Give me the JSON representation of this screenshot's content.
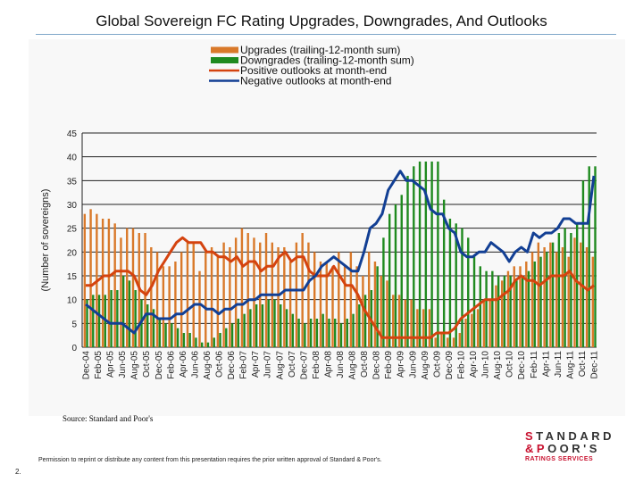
{
  "slide": {
    "source": "Source: Standard and Poor's",
    "permission": "Permission to reprint or distribute any content from this presentation requires the prior written approval of Standard & Poor's.",
    "page_number": "2.",
    "logo": {
      "line1_first": "S",
      "line1_rest": "TANDARD",
      "line2_first": "&P",
      "line2_rest": "OOR'S",
      "line3": "RATINGS SERVICES"
    }
  },
  "chart_data": {
    "type": "bar",
    "title": "Global Sovereign FC Rating Upgrades, Downgrades, And Outlooks",
    "xlabel": "",
    "ylabel": "(Number of sovereigns)",
    "ylim": [
      0,
      45
    ],
    "yticks": [
      0,
      5,
      10,
      15,
      20,
      25,
      30,
      35,
      40,
      45
    ],
    "grid": true,
    "legend_position": "top",
    "tick_every": 2,
    "x": [
      "Dec-04",
      "Jan-05",
      "Feb-05",
      "Mar-05",
      "Apr-05",
      "May-05",
      "Jun-05",
      "Jul-05",
      "Aug-05",
      "Sep-05",
      "Oct-05",
      "Nov-05",
      "Dec-05",
      "Jan-06",
      "Feb-06",
      "Mar-06",
      "Apr-06",
      "May-06",
      "Jun-06",
      "Jul-06",
      "Aug-06",
      "Sep-06",
      "Oct-06",
      "Nov-06",
      "Dec-06",
      "Jan-07",
      "Feb-07",
      "Mar-07",
      "Apr-07",
      "May-07",
      "Jun-07",
      "Jul-07",
      "Aug-07",
      "Sep-07",
      "Oct-07",
      "Nov-07",
      "Dec-07",
      "Jan-08",
      "Feb-08",
      "Mar-08",
      "Apr-08",
      "May-08",
      "Jun-08",
      "Jul-08",
      "Aug-08",
      "Sep-08",
      "Oct-08",
      "Nov-08",
      "Dec-08",
      "Jan-09",
      "Feb-09",
      "Mar-09",
      "Apr-09",
      "May-09",
      "Jun-09",
      "Jul-09",
      "Aug-09",
      "Sep-09",
      "Oct-09",
      "Nov-09",
      "Dec-09",
      "Jan-10",
      "Feb-10",
      "Mar-10",
      "Apr-10",
      "May-10",
      "Jun-10",
      "Jul-10",
      "Aug-10",
      "Sep-10",
      "Oct-10",
      "Nov-10",
      "Dec-10",
      "Jan-11",
      "Feb-11",
      "Mar-11",
      "Apr-11",
      "May-11",
      "Jun-11",
      "Jul-11",
      "Aug-11",
      "Sep-11",
      "Oct-11",
      "Nov-11",
      "Dec-11"
    ],
    "series": [
      {
        "name": "Upgrades (trailing-12-month sum)",
        "kind": "bar",
        "color": "#d9792a",
        "values": [
          28,
          29,
          28,
          27,
          27,
          26,
          23,
          25,
          25,
          24,
          24,
          21,
          20,
          17,
          17,
          18,
          20,
          22,
          22,
          16,
          20,
          21,
          19,
          22,
          21,
          23,
          25,
          24,
          23,
          22,
          24,
          22,
          21,
          21,
          18,
          22,
          24,
          22,
          20,
          18,
          18,
          17,
          20,
          17,
          20,
          17,
          15,
          20,
          18,
          15,
          14,
          11,
          11,
          10,
          10,
          8,
          8,
          8,
          2,
          3,
          2,
          2,
          3,
          6,
          7,
          8,
          10,
          10,
          13,
          14,
          16,
          17,
          17,
          18,
          20,
          22,
          21,
          22,
          20,
          21,
          19,
          23,
          22,
          21,
          19
        ]
      },
      {
        "name": "Downgrades (trailing-12-month sum)",
        "kind": "bar",
        "color": "#1f8a1f",
        "values": [
          10,
          11,
          11,
          11,
          12,
          12,
          15,
          14,
          12,
          10,
          9,
          8,
          6,
          5,
          5,
          4,
          3,
          3,
          2,
          1,
          1,
          2,
          3,
          4,
          5,
          6,
          7,
          8,
          9,
          9,
          10,
          10,
          9,
          8,
          7,
          6,
          5,
          6,
          6,
          7,
          6,
          6,
          5,
          6,
          7,
          9,
          11,
          12,
          17,
          23,
          28,
          30,
          32,
          36,
          38,
          39,
          39,
          39,
          39,
          31,
          27,
          26,
          25,
          23,
          19,
          17,
          16,
          16,
          15,
          15,
          15,
          14,
          15,
          16,
          18,
          19,
          20,
          22,
          24,
          25,
          24,
          26,
          35,
          38,
          38
        ]
      },
      {
        "name": "Positive outlooks at month-end",
        "kind": "line",
        "color": "#d4430f",
        "values": [
          13,
          13,
          14,
          15,
          15,
          16,
          16,
          16,
          15,
          12,
          11,
          13,
          16,
          18,
          20,
          22,
          23,
          22,
          22,
          22,
          20,
          20,
          19,
          19,
          18,
          19,
          17,
          18,
          18,
          16,
          17,
          17,
          19,
          20,
          18,
          19,
          19,
          16,
          15,
          15,
          15,
          17,
          15,
          13,
          13,
          11,
          8,
          6,
          4,
          2,
          2,
          2,
          2,
          2,
          2,
          2,
          2,
          2,
          3,
          3,
          3,
          4,
          6,
          7,
          8,
          9,
          10,
          10,
          10,
          11,
          12,
          14,
          15,
          14,
          14,
          13,
          14,
          15,
          15,
          15,
          16,
          14,
          13,
          12,
          13
        ]
      },
      {
        "name": "Negative outlooks at month-end",
        "kind": "line",
        "color": "#123f94",
        "values": [
          9,
          8,
          7,
          6,
          5,
          5,
          5,
          4,
          3,
          5,
          7,
          7,
          6,
          6,
          6,
          7,
          7,
          8,
          9,
          9,
          8,
          8,
          7,
          8,
          8,
          9,
          9,
          10,
          10,
          11,
          11,
          11,
          11,
          12,
          12,
          12,
          12,
          14,
          15,
          17,
          18,
          19,
          18,
          17,
          16,
          16,
          20,
          25,
          26,
          28,
          33,
          35,
          37,
          35,
          35,
          34,
          33,
          29,
          28,
          28,
          25,
          24,
          20,
          19,
          19,
          20,
          20,
          22,
          21,
          20,
          18,
          20,
          21,
          20,
          24,
          23,
          24,
          24,
          25,
          27,
          27,
          26,
          26,
          26,
          36
        ]
      }
    ]
  }
}
